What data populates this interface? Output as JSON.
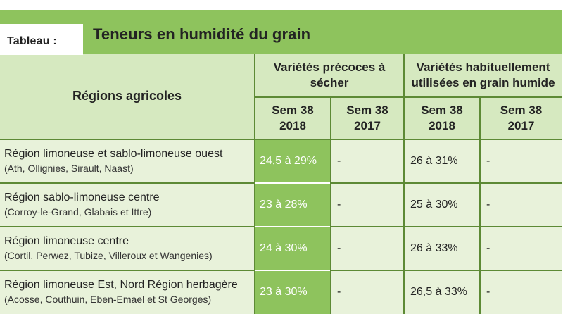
{
  "label": "Tableau :",
  "title": "Teneurs en humidité du grain",
  "headers": {
    "regions": "Régions agricoles",
    "group1": [
      "Variétés précoces à",
      "sécher"
    ],
    "group2": [
      "Variétés habituellement",
      "utilisées en grain humide"
    ],
    "sem2018": [
      "Sem 38",
      "2018"
    ],
    "sem2017": [
      "Sem 38",
      "2017"
    ]
  },
  "rows": [
    {
      "region": "Région limoneuse et sablo-limoneuse ouest",
      "towns": "(Ath, Ollignies, Sirault, Naast)",
      "early2018": "24,5 à 29%",
      "early2017": "-",
      "usual2018": "26 à 31%",
      "usual2017": "-"
    },
    {
      "region": "Région sablo-limoneuse centre",
      "towns": "(Corroy-le-Grand, Glabais et Ittre)",
      "early2018": "23 à 28%",
      "early2017": "-",
      "usual2018": "25 à 30%",
      "usual2017": "-"
    },
    {
      "region": "Région limoneuse centre",
      "towns": "(Cortil, Perwez, Tubize, Villeroux et Wangenies)",
      "early2018": "24 à 30%",
      "early2017": "-",
      "usual2018": "26 à 33%",
      "usual2017": "-"
    },
    {
      "region": "Région limoneuse Est, Nord Région herbagère",
      "towns": "(Acosse, Couthuin, Eben-Emael et St Georges)",
      "early2018": "23 à 30%",
      "early2017": "-",
      "usual2018": "26,5 à 33%",
      "usual2017": "-"
    }
  ]
}
